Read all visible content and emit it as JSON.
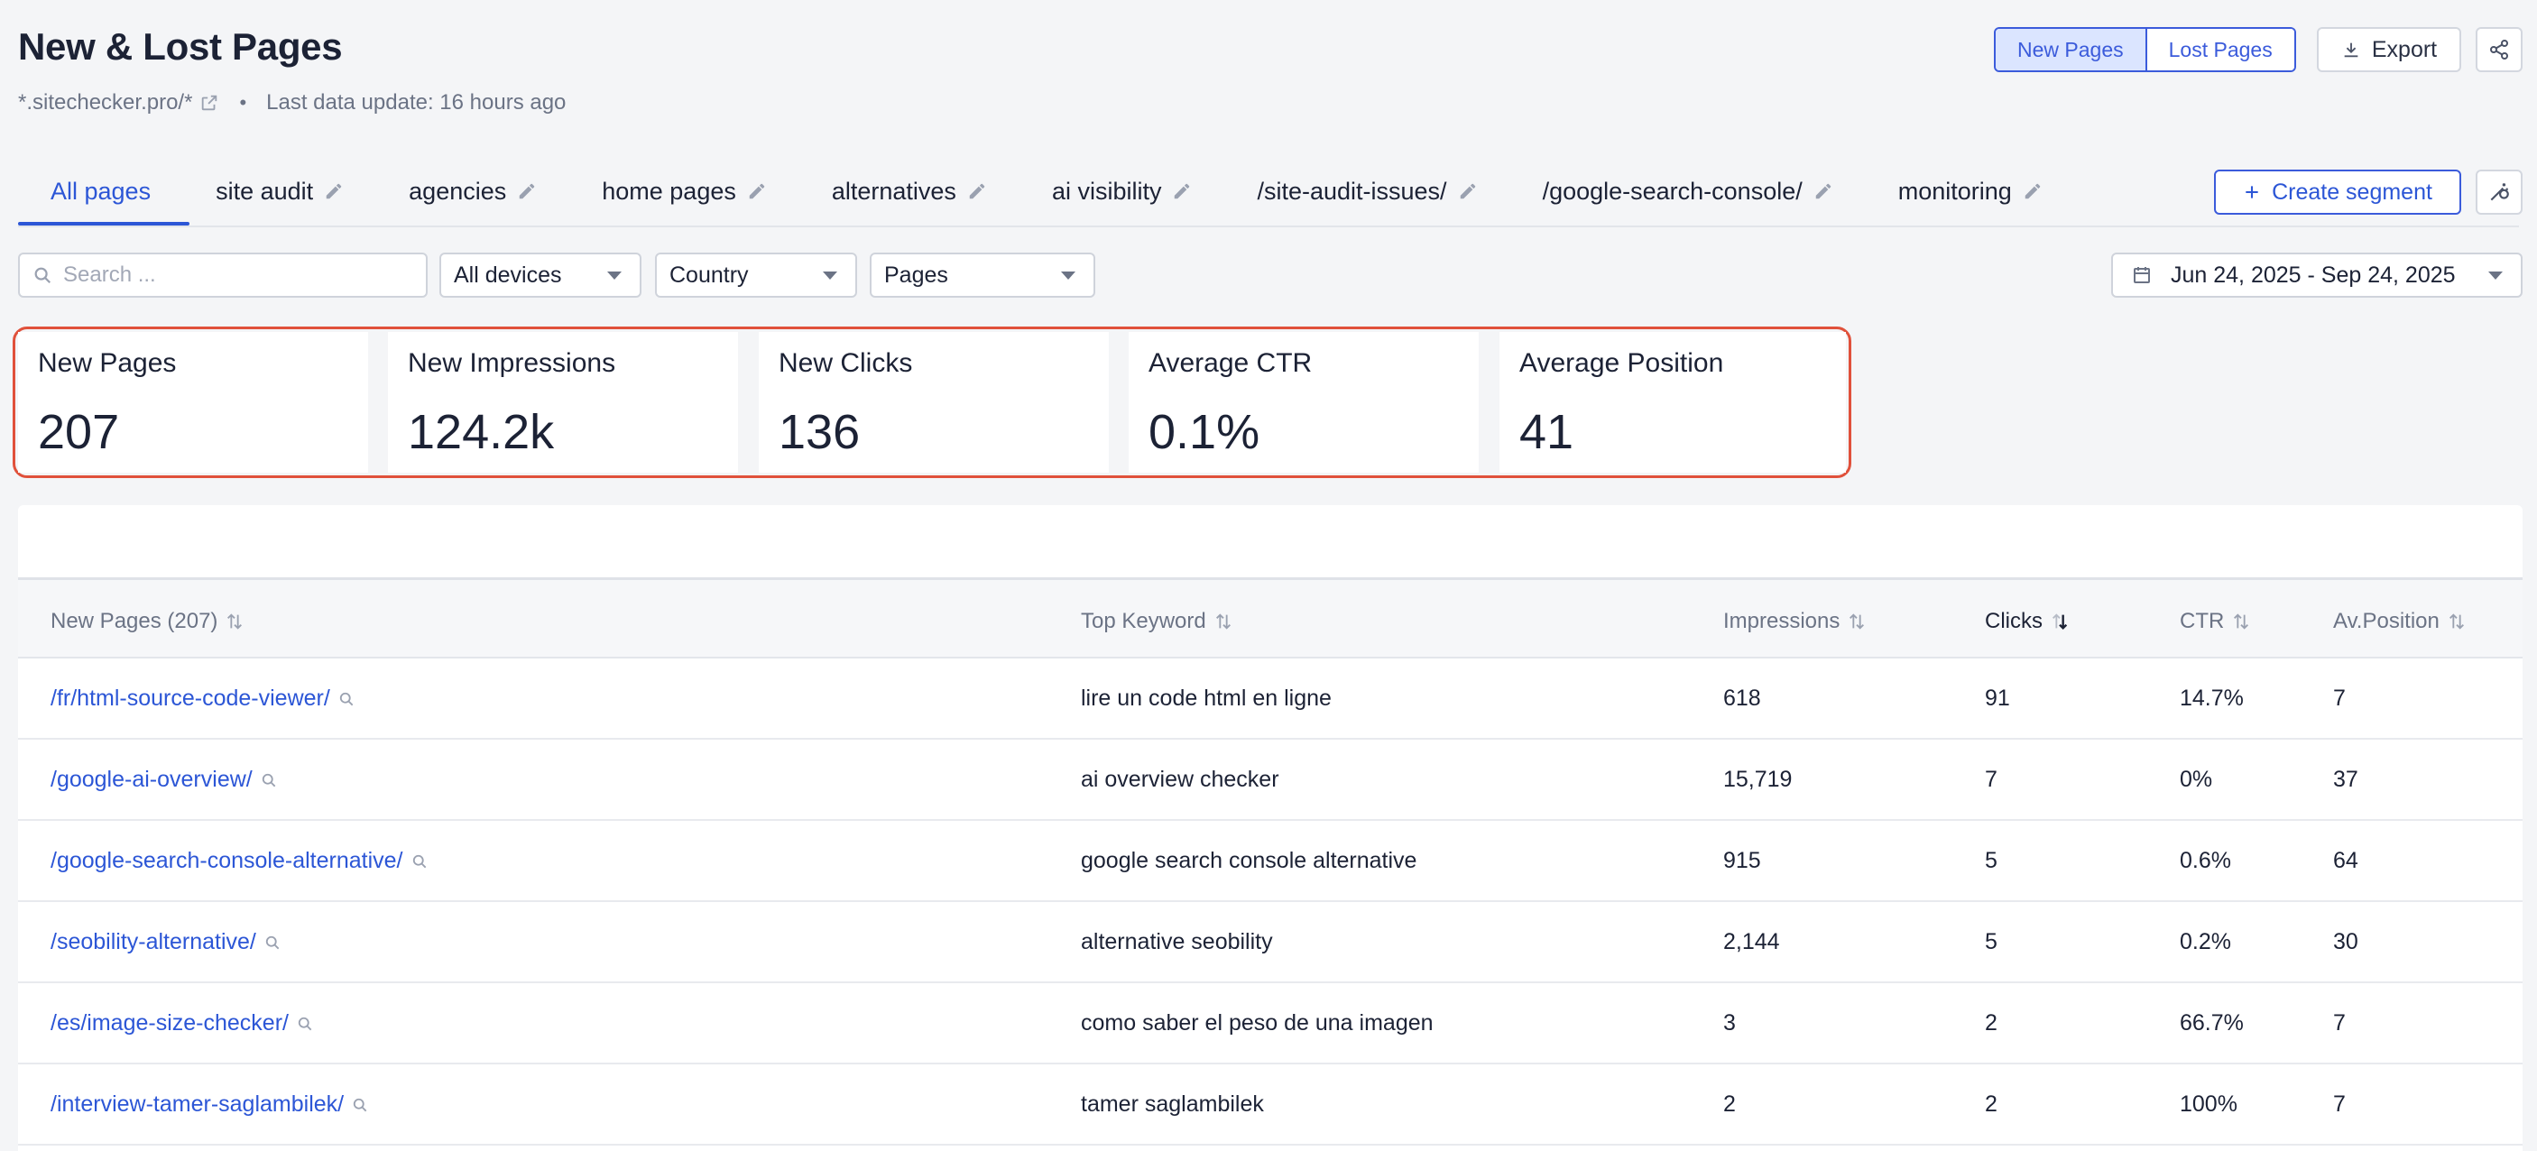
{
  "header": {
    "title": "New & Lost Pages",
    "domain": "*.sitechecker.pro/*",
    "separator": "•",
    "last_update": "Last data update: 16 hours ago",
    "toggle": {
      "new_label": "New Pages",
      "lost_label": "Lost Pages",
      "active": "new"
    },
    "export_label": "Export"
  },
  "tabs": {
    "items": [
      {
        "label": "All pages",
        "editable": false,
        "active": true
      },
      {
        "label": "site audit",
        "editable": true
      },
      {
        "label": "agencies",
        "editable": true
      },
      {
        "label": "home pages",
        "editable": true
      },
      {
        "label": "alternatives",
        "editable": true
      },
      {
        "label": "ai visibility",
        "editable": true
      },
      {
        "label": "/site-audit-issues/",
        "editable": true
      },
      {
        "label": "/google-search-console/",
        "editable": true
      },
      {
        "label": "monitoring",
        "editable": true
      }
    ],
    "create_segment_label": "Create segment"
  },
  "filters": {
    "search_placeholder": "Search ...",
    "devices": "All devices",
    "country": "Country",
    "pages": "Pages",
    "date_range": "Jun 24, 2025 - Sep 24, 2025"
  },
  "summary": [
    {
      "label": "New Pages",
      "value": "207"
    },
    {
      "label": "New Impressions",
      "value": "124.2k"
    },
    {
      "label": "New Clicks",
      "value": "136"
    },
    {
      "label": "Average CTR",
      "value": "0.1%"
    },
    {
      "label": "Average Position",
      "value": "41"
    }
  ],
  "table": {
    "columns": [
      "New Pages (207)",
      "Top Keyword",
      "Impressions",
      "Clicks",
      "CTR",
      "Av.Position"
    ],
    "sorted_column": "Clicks",
    "sort_direction": "desc",
    "rows": [
      {
        "page": "/fr/html-source-code-viewer/",
        "keyword": "lire un code html en ligne",
        "impressions": "618",
        "clicks": "91",
        "ctr": "14.7%",
        "position": "7"
      },
      {
        "page": "/google-ai-overview/",
        "keyword": "ai overview checker",
        "impressions": "15,719",
        "clicks": "7",
        "ctr": "0%",
        "position": "37"
      },
      {
        "page": "/google-search-console-alternative/",
        "keyword": "google search console alternative",
        "impressions": "915",
        "clicks": "5",
        "ctr": "0.6%",
        "position": "64"
      },
      {
        "page": "/seobility-alternative/",
        "keyword": "alternative seobility",
        "impressions": "2,144",
        "clicks": "5",
        "ctr": "0.2%",
        "position": "30"
      },
      {
        "page": "/es/image-size-checker/",
        "keyword": "como saber el peso de una imagen",
        "impressions": "3",
        "clicks": "2",
        "ctr": "66.7%",
        "position": "7"
      },
      {
        "page": "/interview-tamer-saglambilek/",
        "keyword": "tamer saglambilek",
        "impressions": "2",
        "clicks": "2",
        "ctr": "100%",
        "position": "7"
      }
    ]
  },
  "colors": {
    "accent": "#2c56d6",
    "highlight_border": "#e0513b",
    "background": "#f4f5f7"
  }
}
